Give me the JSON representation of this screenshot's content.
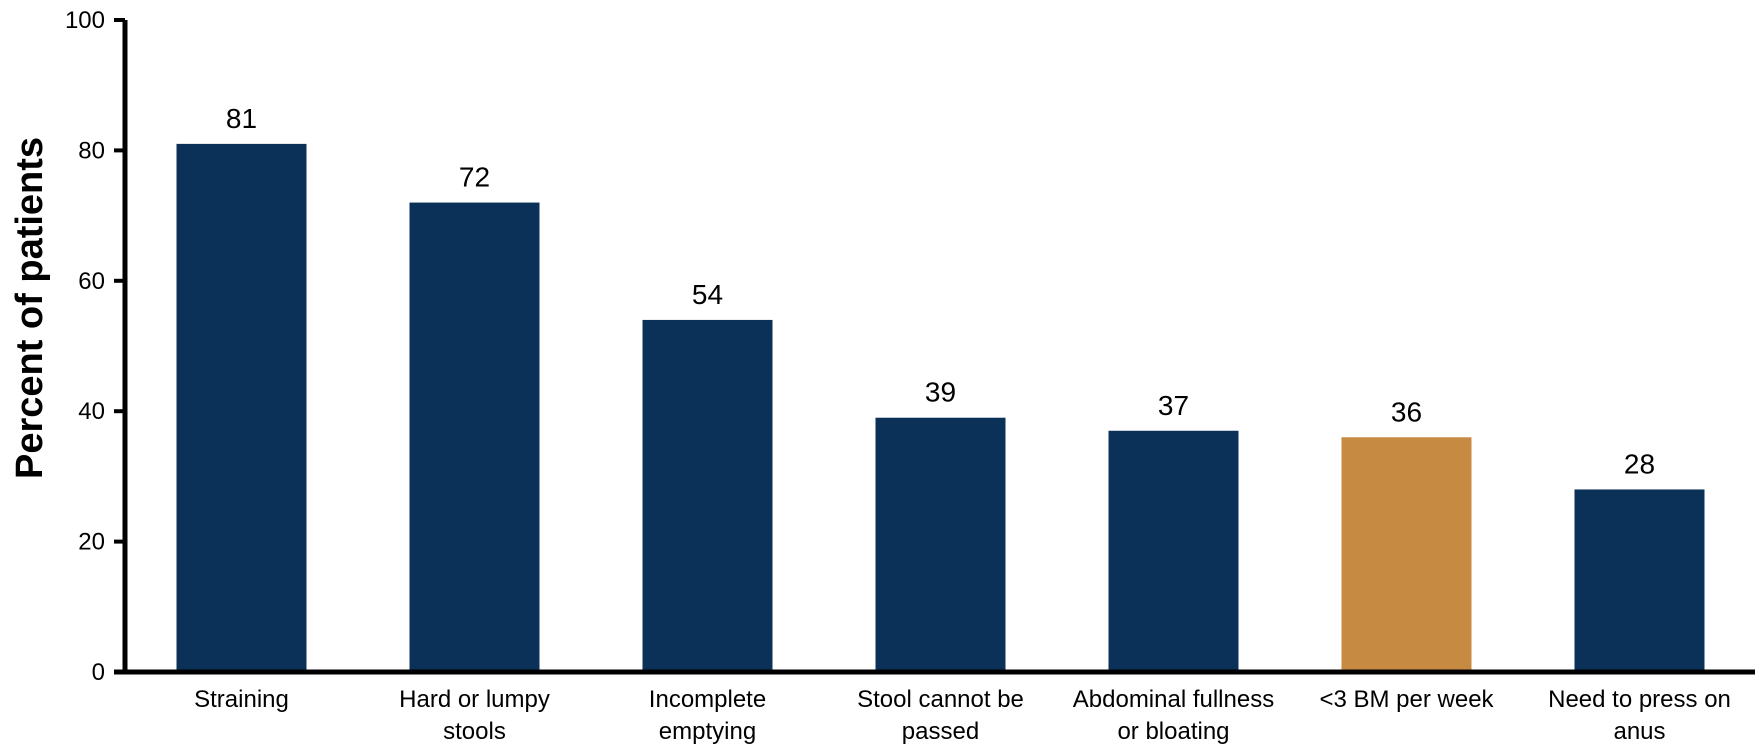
{
  "chart_data": {
    "type": "bar",
    "ylabel": "Percent of patients",
    "xlabel": "",
    "ylim": [
      0,
      100
    ],
    "yticks": [
      0,
      20,
      40,
      60,
      80,
      100
    ],
    "grid": false,
    "categories": [
      [
        "Straining"
      ],
      [
        "Hard or lumpy",
        "stools"
      ],
      [
        "Incomplete",
        "emptying"
      ],
      [
        "Stool cannot be",
        "passed"
      ],
      [
        "Abdominal fullness",
        "or bloating"
      ],
      [
        "<3 BM per week"
      ],
      [
        "Need to press on",
        "anus"
      ]
    ],
    "values": [
      81,
      72,
      54,
      39,
      37,
      36,
      28
    ],
    "colors": {
      "default": "#0c3158",
      "highlight": "#c68a42",
      "axis": "#000000"
    },
    "highlight_index": 5
  }
}
